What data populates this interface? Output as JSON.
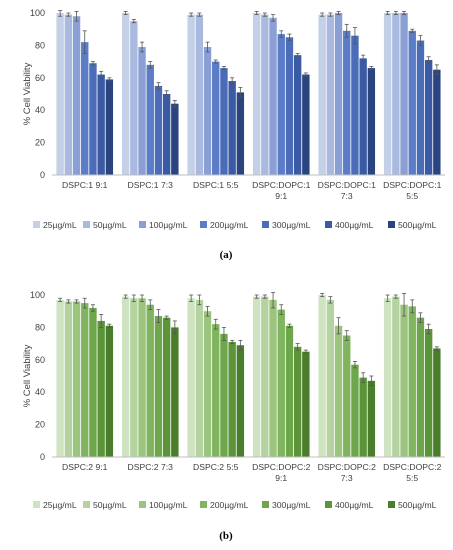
{
  "chart_data": [
    {
      "type": "bar",
      "panel_label": "(a)",
      "ylabel": "% Cell Viability",
      "ylim": [
        0,
        100
      ],
      "yticks": [
        0,
        20,
        40,
        60,
        80,
        100
      ],
      "grid": false,
      "legend_position": "bottom",
      "categories": [
        [
          "DSPC:1 9:1"
        ],
        [
          "DSPC:1 7:3"
        ],
        [
          "DSPC:1 5:5"
        ],
        [
          "DSPC:DOPC:1",
          "9:1"
        ],
        [
          "DSPC:DOPC:1",
          "7:3"
        ],
        [
          "DSPC:DOPC:1",
          "5:5"
        ]
      ],
      "series": [
        {
          "name": "25µg/mL",
          "color": "#c4d0e8",
          "values": [
            100,
            100,
            99,
            100,
            99,
            100
          ],
          "errors": [
            2,
            1,
            1,
            1,
            1,
            1
          ]
        },
        {
          "name": "50µg/mL",
          "color": "#a9b9df",
          "values": [
            99,
            95,
            99,
            99,
            99,
            100
          ],
          "errors": [
            1,
            1,
            1,
            1,
            1,
            1
          ]
        },
        {
          "name": "100µg/mL",
          "color": "#8a9fd4",
          "values": [
            98,
            79,
            79,
            97,
            100,
            100
          ],
          "errors": [
            3,
            3,
            3,
            2,
            1,
            1
          ]
        },
        {
          "name": "200µg/mL",
          "color": "#5b7cc6",
          "values": [
            82,
            68,
            70,
            87,
            89,
            89
          ],
          "errors": [
            7,
            2,
            1,
            2,
            4,
            1
          ]
        },
        {
          "name": "300µg/mL",
          "color": "#4a6cb9",
          "values": [
            69,
            55,
            66,
            85,
            86,
            83
          ],
          "errors": [
            1,
            2,
            1,
            2,
            5,
            3
          ]
        },
        {
          "name": "400µg/mL",
          "color": "#3a5aa3",
          "values": [
            62,
            50,
            58,
            74,
            72,
            71
          ],
          "errors": [
            2,
            2,
            2,
            1,
            2,
            2
          ]
        },
        {
          "name": "500µg/mL",
          "color": "#2a4480",
          "values": [
            59,
            44,
            51,
            62,
            66,
            65
          ],
          "errors": [
            1,
            2,
            3,
            1,
            1,
            3
          ]
        }
      ]
    },
    {
      "type": "bar",
      "panel_label": "(b)",
      "ylabel": "% Cell Viability",
      "ylim": [
        0,
        100
      ],
      "yticks": [
        0,
        20,
        40,
        60,
        80,
        100
      ],
      "grid": false,
      "legend_position": "bottom",
      "categories": [
        [
          "DSPC:2 9:1"
        ],
        [
          "DSPC:2 7:3"
        ],
        [
          "DSPC:2 5:5"
        ],
        [
          "DSPC:DOPC:2",
          "9:1"
        ],
        [
          "DSPC:DOPC:2",
          "7:3"
        ],
        [
          "DSPC:DOPC:2",
          "5:5"
        ]
      ],
      "series": [
        {
          "name": "25µg/mL",
          "color": "#cfe3c1",
          "values": [
            97,
            99,
            98,
            99,
            100,
            98
          ],
          "errors": [
            1,
            1,
            2,
            1,
            1,
            2
          ]
        },
        {
          "name": "50µg/mL",
          "color": "#b5d3a1",
          "values": [
            96,
            98,
            97,
            99,
            97,
            99
          ],
          "errors": [
            1,
            2,
            3,
            1,
            2,
            1
          ]
        },
        {
          "name": "100µg/mL",
          "color": "#9bc47e",
          "values": [
            96,
            98,
            90,
            97,
            81,
            94
          ],
          "errors": [
            1,
            2,
            3,
            5,
            5,
            7
          ]
        },
        {
          "name": "200µg/mL",
          "color": "#81b45f",
          "values": [
            95,
            94,
            82,
            91,
            75,
            93
          ],
          "errors": [
            3,
            3,
            3,
            3,
            3,
            4
          ]
        },
        {
          "name": "300µg/mL",
          "color": "#6ea64b",
          "values": [
            92,
            87,
            76,
            81,
            57,
            86
          ],
          "errors": [
            2,
            4,
            4,
            1,
            2,
            3
          ]
        },
        {
          "name": "400µg/mL",
          "color": "#5c9539",
          "values": [
            84,
            86,
            71,
            68,
            49,
            79
          ],
          "errors": [
            4,
            1,
            1,
            2,
            3,
            3
          ]
        },
        {
          "name": "500µg/mL",
          "color": "#4a7d2c",
          "values": [
            81,
            80,
            69,
            65,
            47,
            67
          ],
          "errors": [
            1,
            4,
            3,
            1,
            3,
            1
          ]
        }
      ]
    }
  ]
}
